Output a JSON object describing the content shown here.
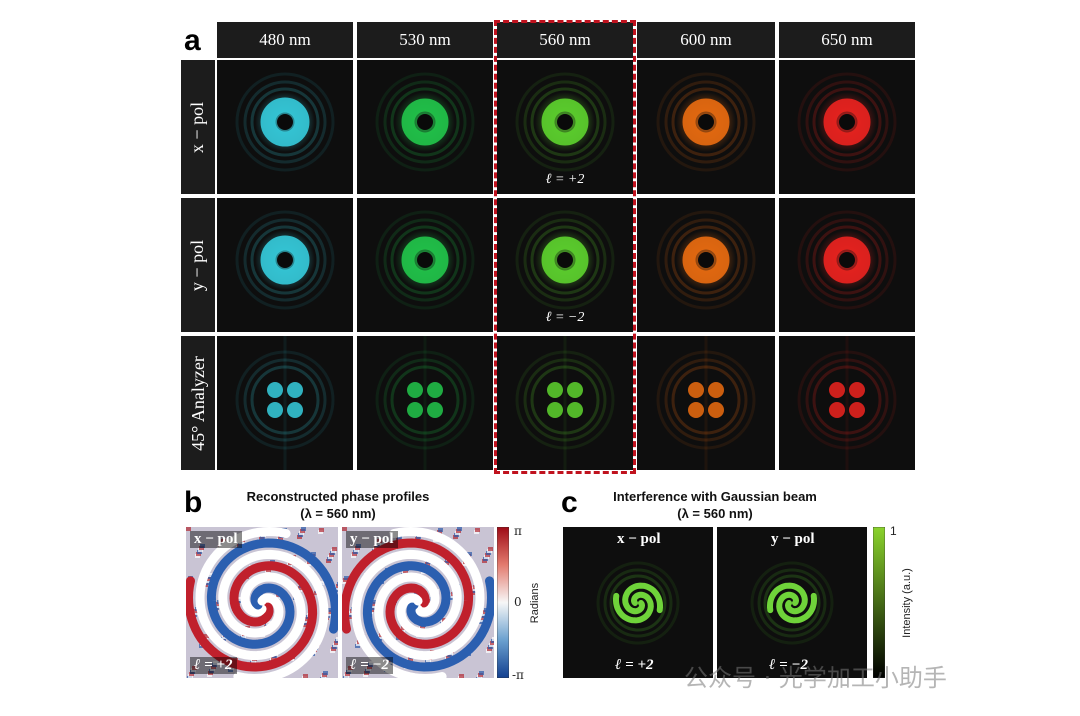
{
  "panel_a": {
    "letter": "a",
    "columns": [
      "480 nm",
      "530 nm",
      "560 nm",
      "600 nm",
      "650 nm"
    ],
    "rows": [
      "x − pol",
      "y − pol",
      "45° Analyzer"
    ],
    "highlighted_column": "560 nm",
    "labels": {
      "x_pol_560": "ℓ = +2",
      "y_pol_560": "ℓ = −2"
    },
    "colors": {
      "480 nm": "#35c8d8",
      "530 nm": "#22c24a",
      "560 nm": "#5ccf2e",
      "600 nm": "#e66a10",
      "650 nm": "#e8231f",
      "highlight_box": "#c0121e"
    }
  },
  "panel_b": {
    "letter": "b",
    "title_line1": "Reconstructed phase profiles",
    "title_line2": "(λ = 560 nm)",
    "left_tag": "x − pol",
    "right_tag": "y − pol",
    "left_l": "ℓ = +2",
    "right_l": "ℓ = −2",
    "colorbar": {
      "top": "π",
      "middle": "0",
      "bottom": "-π",
      "axis_label": "Radians"
    }
  },
  "panel_c": {
    "letter": "c",
    "title_line1": "Interference with Gaussian beam",
    "title_line2": "(λ = 560 nm)",
    "left_tag": "x − pol",
    "right_tag": "y − pol",
    "left_l": "ℓ = +2",
    "right_l": "ℓ = −2",
    "colorbar": {
      "top": "1",
      "axis_label": "Intensity (a.u.)"
    }
  },
  "watermark": "公众号 · 光学加工小助手"
}
